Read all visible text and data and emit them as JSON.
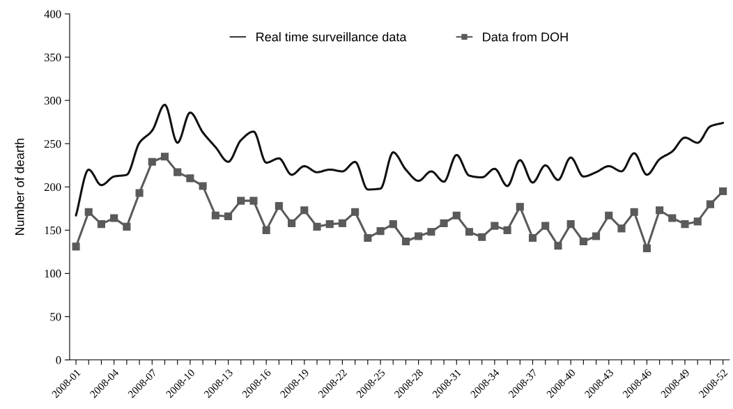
{
  "chart_data": {
    "type": "line",
    "ylabel": "Number of dearth",
    "categories": [
      "2008-01",
      null,
      null,
      "2008-04",
      null,
      null,
      "2008-07",
      null,
      null,
      "2008-10",
      null,
      null,
      "2008-13",
      null,
      null,
      "2008-16",
      null,
      null,
      "2008-19",
      null,
      null,
      "2008-22",
      null,
      null,
      "2008-25",
      null,
      null,
      "2008-28",
      null,
      null,
      "2008-31",
      null,
      null,
      "2008-34",
      null,
      null,
      "2008-37",
      null,
      null,
      "2008-40",
      null,
      null,
      "2008-43",
      null,
      null,
      "2008-46",
      null,
      null,
      "2008-49",
      null,
      null,
      "2008-52"
    ],
    "series": [
      {
        "name": "Real time surveillance data",
        "color": "#111111",
        "marker": "none",
        "values": [
          167,
          220,
          202,
          212,
          214,
          251,
          265,
          295,
          251,
          286,
          263,
          246,
          229,
          254,
          264,
          228,
          233,
          214,
          224,
          217,
          220,
          218,
          229,
          197,
          198,
          240,
          220,
          207,
          218,
          206,
          237,
          213,
          211,
          221,
          201,
          231,
          205,
          225,
          208,
          234,
          212,
          217,
          224,
          218,
          239,
          214,
          232,
          241,
          257,
          251,
          270,
          274
        ]
      },
      {
        "name": "Data from DOH",
        "color": "#5a5a5a",
        "marker": "square",
        "values": [
          131,
          171,
          157,
          164,
          154,
          193,
          229,
          235,
          217,
          210,
          201,
          167,
          166,
          184,
          184,
          150,
          178,
          158,
          173,
          154,
          157,
          158,
          171,
          141,
          149,
          157,
          137,
          143,
          148,
          158,
          167,
          148,
          142,
          155,
          150,
          177,
          141,
          155,
          132,
          157,
          137,
          143,
          167,
          152,
          171,
          129,
          173,
          164,
          157,
          160,
          180,
          195
        ]
      }
    ],
    "ylim": [
      0,
      400
    ],
    "yticks": [
      0,
      50,
      100,
      150,
      200,
      250,
      300,
      350,
      400
    ],
    "grid": false,
    "legend": "top"
  }
}
